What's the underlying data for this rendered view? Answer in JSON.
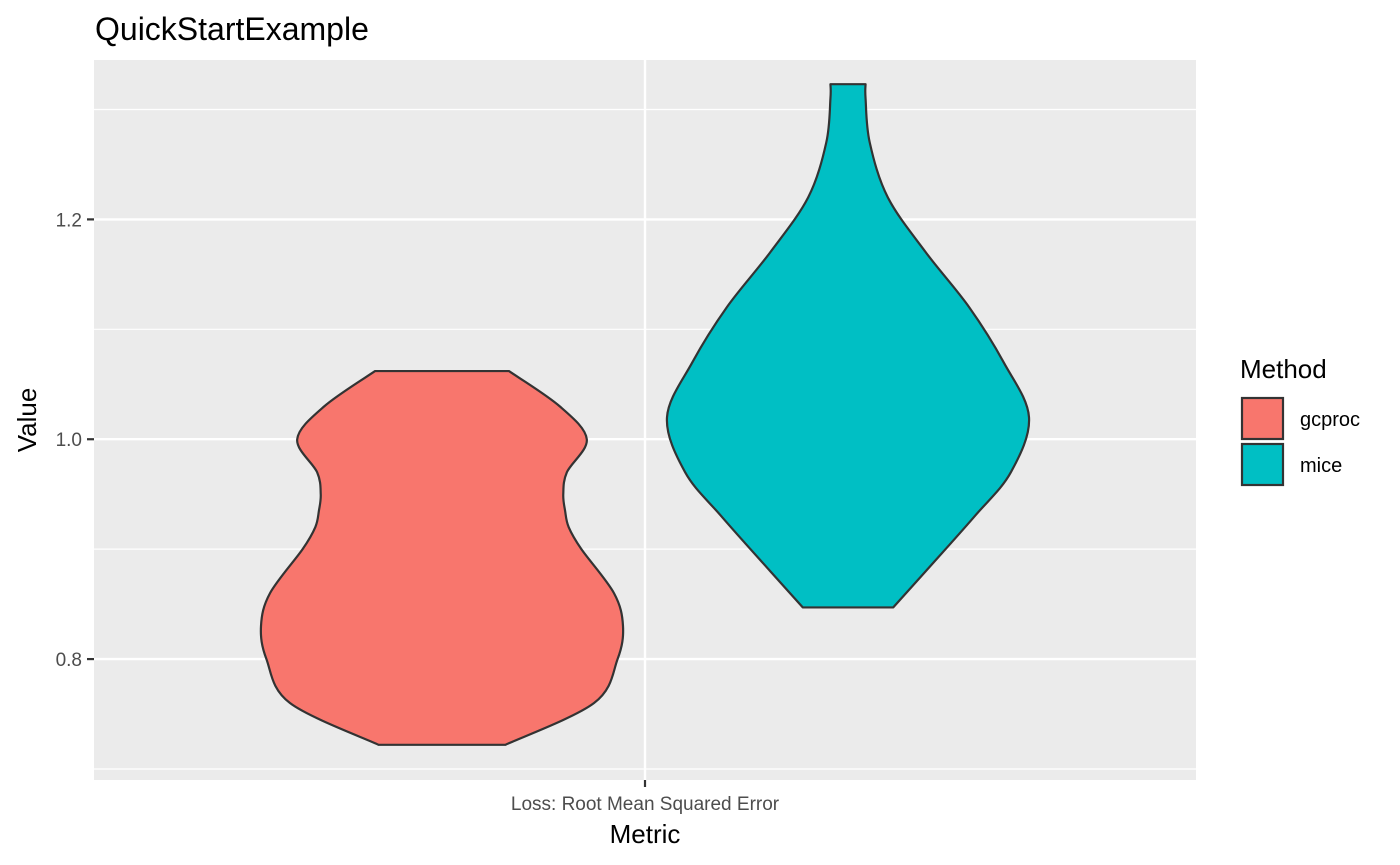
{
  "chart_data": {
    "type": "violin",
    "title": "QuickStartExample",
    "xlabel": "Metric",
    "ylabel": "Value",
    "categories": [
      "Loss: Root Mean Squared Error"
    ],
    "ylim": [
      0.69,
      1.345
    ],
    "y_ticks": [
      0.8,
      1.0,
      1.2
    ],
    "y_tick_labels": [
      "0.8",
      "1.0",
      "1.2"
    ],
    "grid": true,
    "legend": {
      "title": "Method",
      "position": "right"
    },
    "series": [
      {
        "name": "gcproc",
        "color": "#F8766D",
        "density_profile": [
          [
            0.722,
            0.35
          ],
          [
            0.76,
            0.84
          ],
          [
            0.8,
            0.97
          ],
          [
            0.83,
            1.0
          ],
          [
            0.86,
            0.95
          ],
          [
            0.9,
            0.77
          ],
          [
            0.92,
            0.7
          ],
          [
            0.935,
            0.68
          ],
          [
            0.95,
            0.67
          ],
          [
            0.97,
            0.69
          ],
          [
            1.0,
            0.8
          ],
          [
            1.03,
            0.65
          ],
          [
            1.062,
            0.37
          ]
        ]
      },
      {
        "name": "mice",
        "color": "#00BFC4",
        "density_profile": [
          [
            0.847,
            0.25
          ],
          [
            0.88,
            0.43
          ],
          [
            0.93,
            0.7
          ],
          [
            0.97,
            0.9
          ],
          [
            1.02,
            1.0
          ],
          [
            1.07,
            0.86
          ],
          [
            1.12,
            0.67
          ],
          [
            1.17,
            0.43
          ],
          [
            1.22,
            0.22
          ],
          [
            1.27,
            0.12
          ],
          [
            1.31,
            0.097
          ],
          [
            1.323,
            0.097
          ]
        ]
      }
    ]
  }
}
